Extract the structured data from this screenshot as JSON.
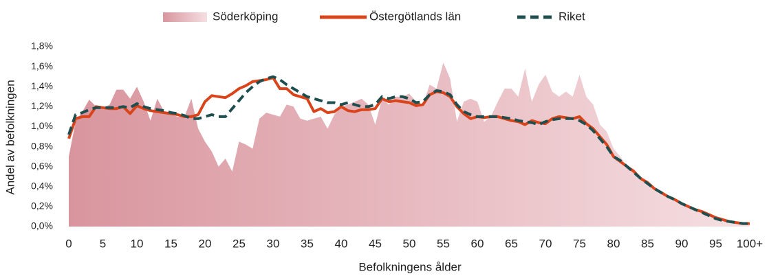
{
  "chart_data": {
    "type": "area_line",
    "xlabel": "Befolkningens ålder",
    "ylabel": "Andel av befolkningen",
    "categories": [
      "0",
      null,
      null,
      null,
      null,
      "5",
      null,
      null,
      null,
      null,
      "10",
      null,
      null,
      null,
      null,
      "15",
      null,
      null,
      null,
      null,
      "20",
      null,
      null,
      null,
      null,
      "25",
      null,
      null,
      null,
      null,
      "30",
      null,
      null,
      null,
      null,
      "35",
      null,
      null,
      null,
      null,
      "40",
      null,
      null,
      null,
      null,
      "45",
      null,
      null,
      null,
      null,
      "50",
      null,
      null,
      null,
      null,
      "55",
      null,
      null,
      null,
      null,
      "60",
      null,
      null,
      null,
      null,
      "65",
      null,
      null,
      null,
      null,
      "70",
      null,
      null,
      null,
      null,
      "75",
      null,
      null,
      null,
      null,
      "80",
      null,
      null,
      null,
      null,
      "85",
      null,
      null,
      null,
      null,
      "90",
      null,
      null,
      null,
      null,
      "95",
      null,
      null,
      null,
      null,
      "100+"
    ],
    "ylim": [
      0,
      1.8
    ],
    "yticks": [
      {
        "value": 0,
        "label": "0,0%"
      },
      {
        "value": 0.2,
        "label": "0,2%"
      },
      {
        "value": 0.4,
        "label": "0,4%"
      },
      {
        "value": 0.6,
        "label": "0,6%"
      },
      {
        "value": 0.8,
        "label": "0,8%"
      },
      {
        "value": 1.0,
        "label": "1,0%"
      },
      {
        "value": 1.2,
        "label": "1,2%"
      },
      {
        "value": 1.4,
        "label": "1,4%"
      },
      {
        "value": 1.6,
        "label": "1,6%"
      },
      {
        "value": 1.8,
        "label": "1,8%"
      }
    ],
    "grid": false,
    "legend": "top",
    "series": [
      {
        "name": "Söderköping",
        "kind": "area",
        "color": "#e0a3aa",
        "values": [
          0.7,
          1.05,
          1.15,
          1.27,
          1.2,
          1.18,
          1.22,
          1.37,
          1.37,
          1.28,
          1.4,
          1.25,
          1.06,
          1.28,
          1.15,
          1.12,
          1.1,
          1.1,
          1.28,
          0.98,
          0.85,
          0.75,
          0.6,
          0.68,
          0.55,
          0.85,
          0.82,
          0.78,
          1.08,
          1.14,
          1.12,
          1.1,
          1.22,
          1.2,
          1.08,
          1.06,
          1.08,
          1.1,
          0.98,
          1.12,
          1.2,
          1.22,
          1.25,
          1.28,
          1.22,
          1.02,
          1.28,
          1.22,
          1.3,
          1.3,
          1.33,
          1.25,
          1.22,
          1.42,
          1.38,
          1.64,
          1.48,
          1.05,
          1.25,
          1.28,
          1.25,
          1.05,
          1.1,
          1.25,
          1.38,
          1.38,
          1.3,
          1.58,
          1.25,
          1.42,
          1.52,
          1.35,
          1.3,
          1.35,
          1.3,
          1.52,
          1.3,
          1.22,
          1.02,
          0.95,
          0.78,
          0.7,
          0.6,
          0.58,
          0.48,
          0.42,
          0.38,
          0.34,
          0.3,
          0.27,
          0.23,
          0.2,
          0.17,
          0.15,
          0.12,
          0.09,
          0.07,
          0.05,
          0.04,
          0.03,
          0.03
        ]
      },
      {
        "name": "Östergötlands län",
        "kind": "line",
        "color": "#d9441a",
        "values": [
          0.88,
          1.08,
          1.1,
          1.1,
          1.2,
          1.19,
          1.18,
          1.18,
          1.2,
          1.13,
          1.21,
          1.18,
          1.16,
          1.15,
          1.14,
          1.13,
          1.12,
          1.1,
          1.1,
          1.12,
          1.25,
          1.31,
          1.3,
          1.29,
          1.33,
          1.38,
          1.41,
          1.45,
          1.46,
          1.47,
          1.49,
          1.38,
          1.38,
          1.32,
          1.3,
          1.28,
          1.15,
          1.18,
          1.14,
          1.15,
          1.2,
          1.16,
          1.15,
          1.17,
          1.17,
          1.18,
          1.28,
          1.25,
          1.26,
          1.25,
          1.24,
          1.21,
          1.22,
          1.32,
          1.35,
          1.34,
          1.3,
          1.2,
          1.13,
          1.08,
          1.1,
          1.09,
          1.1,
          1.1,
          1.08,
          1.06,
          1.05,
          1.02,
          1.06,
          1.04,
          1.03,
          1.08,
          1.1,
          1.09,
          1.08,
          1.1,
          1.03,
          0.98,
          0.9,
          0.82,
          0.7,
          0.65,
          0.6,
          0.55,
          0.48,
          0.44,
          0.38,
          0.34,
          0.3,
          0.27,
          0.23,
          0.2,
          0.17,
          0.15,
          0.12,
          0.09,
          0.07,
          0.05,
          0.04,
          0.03,
          0.03
        ]
      },
      {
        "name": "Riket",
        "kind": "dashed",
        "color": "#1f4e4f",
        "values": [
          0.92,
          1.12,
          1.14,
          1.17,
          1.19,
          1.19,
          1.19,
          1.19,
          1.2,
          1.19,
          1.23,
          1.2,
          1.18,
          1.17,
          1.16,
          1.14,
          1.13,
          1.11,
          1.08,
          1.08,
          1.1,
          1.12,
          1.1,
          1.1,
          1.18,
          1.26,
          1.34,
          1.4,
          1.45,
          1.48,
          1.5,
          1.47,
          1.42,
          1.38,
          1.34,
          1.3,
          1.28,
          1.26,
          1.24,
          1.24,
          1.22,
          1.24,
          1.22,
          1.2,
          1.2,
          1.22,
          1.3,
          1.28,
          1.3,
          1.3,
          1.28,
          1.24,
          1.25,
          1.32,
          1.36,
          1.35,
          1.32,
          1.22,
          1.15,
          1.12,
          1.1,
          1.1,
          1.1,
          1.1,
          1.09,
          1.08,
          1.06,
          1.05,
          1.04,
          1.02,
          1.05,
          1.07,
          1.08,
          1.08,
          1.08,
          1.06,
          1.02,
          0.96,
          0.88,
          0.8,
          0.7,
          0.66,
          0.6,
          0.54,
          0.48,
          0.43,
          0.38,
          0.34,
          0.3,
          0.27,
          0.23,
          0.2,
          0.17,
          0.14,
          0.11,
          0.08,
          0.06,
          0.05,
          0.04,
          0.03,
          0.03
        ]
      }
    ]
  }
}
